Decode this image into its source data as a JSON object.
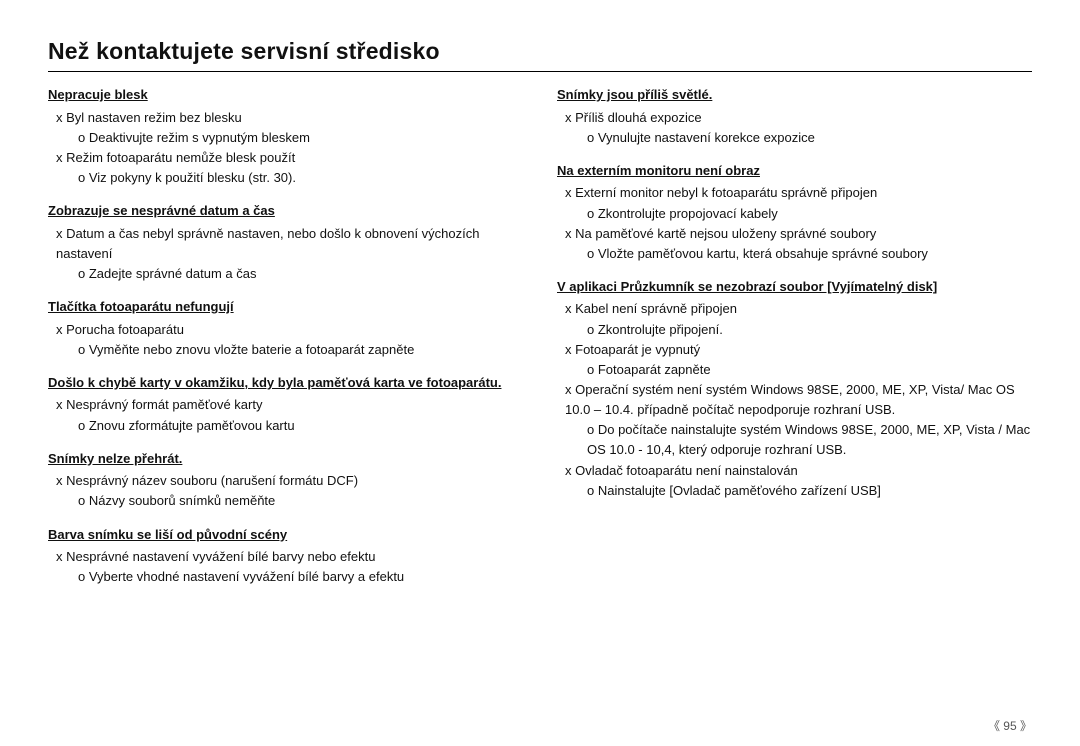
{
  "page_title": "Než kontaktujete servisní středisko",
  "page_number": "95",
  "left": {
    "sections": [
      {
        "title": "Nepracuje blesk",
        "items": [
          {
            "cause": "Byl nastaven režim bez blesku",
            "remedies": [
              "Deaktivujte režim s vypnutým bleskem"
            ]
          },
          {
            "cause": "Režim fotoaparátu nemůže blesk použít",
            "remedies": [
              "Viz pokyny k použití blesku (str. 30)."
            ]
          }
        ]
      },
      {
        "title": "Zobrazuje se nesprávné datum a čas",
        "items": [
          {
            "cause": "Datum a čas nebyl správně nastaven, nebo došlo k obnovení výchozích nastavení",
            "remedies": [
              "Zadejte správné datum a čas"
            ]
          }
        ]
      },
      {
        "title": "Tlačítka fotoaparátu nefungují",
        "items": [
          {
            "cause": "Porucha fotoaparátu",
            "remedies": [
              "Vyměňte nebo znovu vložte baterie a fotoaparát zapněte"
            ]
          }
        ]
      },
      {
        "title": "Došlo k chybě karty v okamžiku, kdy byla paměťová karta ve fotoaparátu.",
        "items": [
          {
            "cause": "Nesprávný formát paměťové karty",
            "remedies": [
              "Znovu zformátujte paměťovou kartu"
            ]
          }
        ]
      },
      {
        "title": "Snímky nelze přehrát.",
        "items": [
          {
            "cause": "Nesprávný název souboru (narušení formátu DCF)",
            "remedies": [
              "Názvy souborů snímků neměňte"
            ]
          }
        ]
      },
      {
        "title": "Barva snímku se liší od původní scény",
        "items": [
          {
            "cause": "Nesprávné nastavení vyvážení bílé barvy nebo efektu",
            "remedies": [
              "Vyberte vhodné nastavení vyvážení bílé barvy a efektu"
            ]
          }
        ]
      }
    ]
  },
  "right": {
    "sections": [
      {
        "title": "Snímky jsou příliš světlé.",
        "items": [
          {
            "cause": "Příliš dlouhá expozice",
            "remedies": [
              "Vynulujte nastavení korekce expozice"
            ]
          }
        ]
      },
      {
        "title": "Na externím monitoru není obraz",
        "items": [
          {
            "cause": "Externí monitor nebyl k fotoaparátu správně připojen",
            "remedies": [
              "Zkontrolujte propojovací kabely"
            ]
          },
          {
            "cause": "Na paměťové kartě nejsou uloženy správné soubory",
            "remedies": [
              "Vložte paměťovou kartu, která obsahuje správné soubory"
            ]
          }
        ]
      },
      {
        "title": "V aplikaci Průzkumník se nezobrazí soubor [Vyjímatelný disk]",
        "items": [
          {
            "cause": "Kabel není správně připojen",
            "remedies": [
              "Zkontrolujte připojení."
            ]
          },
          {
            "cause": "Fotoaparát je vypnutý",
            "remedies": [
              "Fotoaparát zapněte"
            ]
          },
          {
            "cause": "Operační systém není systém Windows 98SE, 2000, ME, XP, Vista/ Mac OS 10.0 – 10.4.  případně počítač nepodporuje rozhraní USB.",
            "remedies": [
              "Do počítače nainstalujte systém Windows 98SE, 2000, ME, XP, Vista / Mac OS 10.0 - 10,4, který odporuje rozhraní USB."
            ]
          },
          {
            "cause": "Ovladač fotoaparátu není nainstalován",
            "remedies": [
              "Nainstalujte [Ovladač paměťového zařízení USB]"
            ]
          }
        ]
      }
    ]
  }
}
